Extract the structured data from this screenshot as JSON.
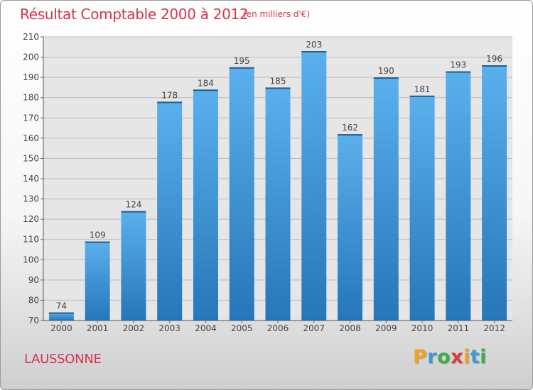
{
  "chart_data": {
    "type": "bar",
    "title": "Résultat Comptable 2000 à 2012",
    "subtitle": "(en milliers d'€)",
    "categories": [
      "2000",
      "2001",
      "2002",
      "2003",
      "2004",
      "2005",
      "2006",
      "2007",
      "2008",
      "2009",
      "2010",
      "2011",
      "2012"
    ],
    "values": [
      74,
      109,
      124,
      178,
      184,
      195,
      185,
      203,
      162,
      190,
      181,
      193,
      196
    ],
    "ylim": [
      70,
      210
    ],
    "yticks": [
      70,
      80,
      90,
      100,
      110,
      120,
      130,
      140,
      150,
      160,
      170,
      180,
      190,
      200,
      210
    ],
    "xlabel": "",
    "ylabel": "",
    "grid": true,
    "bar_color": "#2f86cf"
  },
  "footer": {
    "commune": "LAUSSONNE",
    "brand_letters": [
      "P",
      "r",
      "o",
      "x",
      "i",
      "t",
      "i"
    ],
    "brand_colors": [
      "#f2a11f",
      "#3a9ad9",
      "#3cae49",
      "#e03b3b",
      "#f2a11f",
      "#3a9ad9",
      "#3cae49"
    ]
  },
  "colors": {
    "title": "#d6344e",
    "grid": "#bdbdbd",
    "plot_background": "#e6e6e6"
  }
}
